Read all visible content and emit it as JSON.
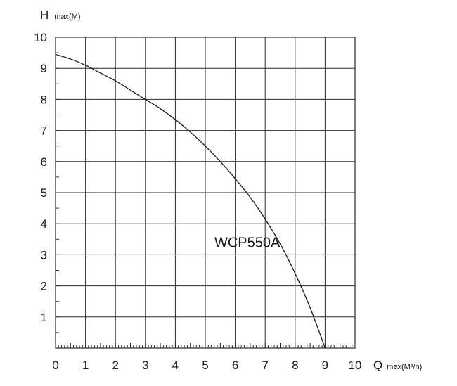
{
  "chart_data": {
    "type": "line",
    "title": "",
    "xlabel": {
      "main": "Q",
      "sub": "max(M³/h)"
    },
    "ylabel": {
      "main": "H",
      "sub": "max(M)"
    },
    "xlim": [
      0,
      10
    ],
    "ylim": [
      0,
      10
    ],
    "xticks": [
      "0",
      "1",
      "2",
      "3",
      "4",
      "5",
      "6",
      "7",
      "8",
      "9",
      "10"
    ],
    "yticks": [
      "1",
      "2",
      "3",
      "4",
      "5",
      "6",
      "7",
      "8",
      "9",
      "10"
    ],
    "grid": true,
    "series": [
      {
        "name": "WCP550A",
        "x": [
          0,
          0.5,
          1,
          1.5,
          2,
          2.5,
          3,
          3.5,
          4,
          4.5,
          5,
          5.5,
          6,
          6.5,
          7,
          7.5,
          8,
          8.5,
          9
        ],
        "y": [
          9.45,
          9.3,
          9.1,
          8.85,
          8.6,
          8.3,
          8.0,
          7.7,
          7.35,
          6.95,
          6.5,
          6.0,
          5.45,
          4.85,
          4.15,
          3.35,
          2.4,
          1.3,
          0.0
        ]
      }
    ],
    "series_label": "WCP550A",
    "series_label_at": [
      6.4,
      3.4
    ]
  }
}
